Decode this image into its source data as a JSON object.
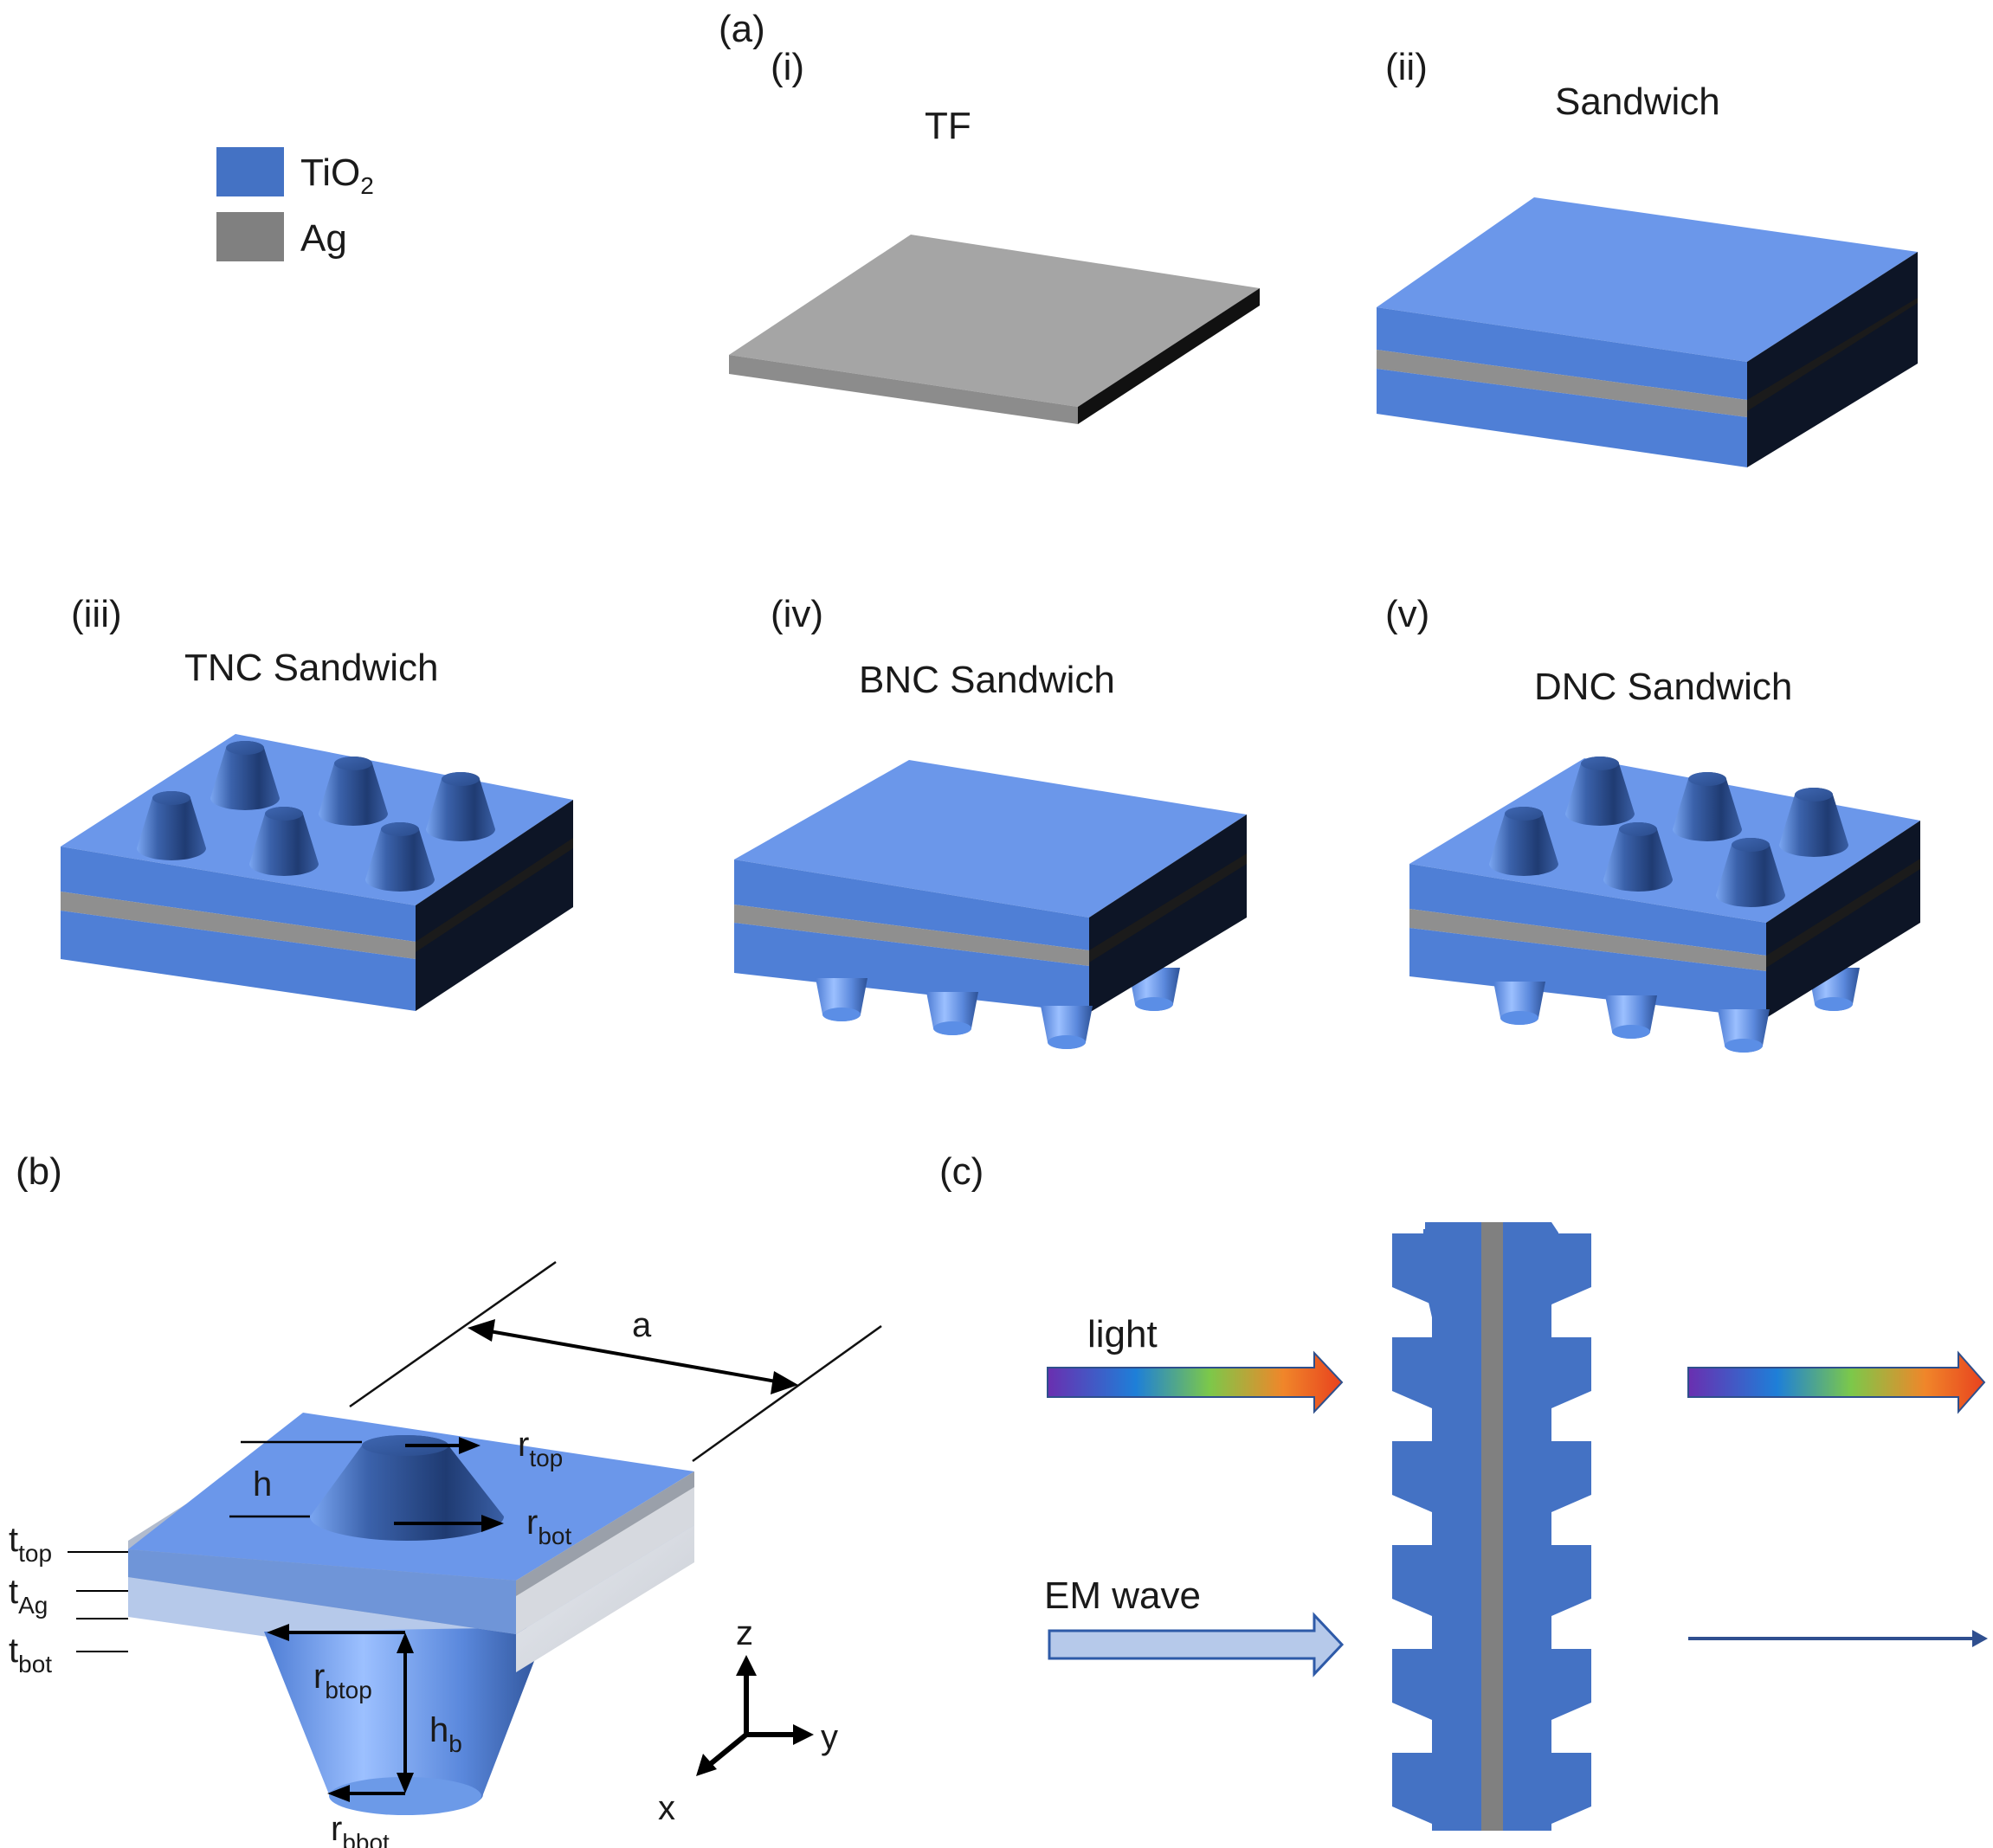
{
  "panels": {
    "a": {
      "label": "(a)",
      "sub": [
        {
          "roman": "(i)",
          "title": "TF"
        },
        {
          "roman": "(ii)",
          "title": "Sandwich"
        },
        {
          "roman": "(iii)",
          "title": "TNC Sandwich"
        },
        {
          "roman": "(iv)",
          "title": "BNC Sandwich"
        },
        {
          "roman": "(v)",
          "title": "DNC Sandwich"
        }
      ]
    },
    "b": {
      "label": "(b)"
    },
    "c": {
      "label": "(c)"
    }
  },
  "legend": {
    "items": [
      {
        "base": "TiO",
        "sub": "2",
        "color": "#4472c4"
      },
      {
        "base": "Ag",
        "sub": "",
        "color": "#808080"
      }
    ]
  },
  "dims": {
    "a": "a",
    "h": {
      "base": "h",
      "sub": ""
    },
    "r_top": {
      "base": "r",
      "sub": "top"
    },
    "r_bot": {
      "base": "r",
      "sub": "bot"
    },
    "t_top": {
      "base": "t",
      "sub": "top"
    },
    "t_ag": {
      "base": "t",
      "sub": "Ag"
    },
    "t_bot": {
      "base": "t",
      "sub": "bot"
    },
    "r_btop": {
      "base": "r",
      "sub": "btop"
    },
    "h_b": {
      "base": "h",
      "sub": "b"
    },
    "r_bbot": {
      "base": "r",
      "sub": "bbot"
    }
  },
  "axes": {
    "z": "z",
    "y": "y",
    "x": "x"
  },
  "waves": {
    "light": "light",
    "em": "EM wave"
  },
  "colors": {
    "tio2_top": "#6b97ea",
    "tio2_front": "#4f7fd6",
    "side_dark": "#0d1526",
    "ag_front": "#8f8f8f",
    "ag_top": "#a3a3a3",
    "cone_dark": "#22417a",
    "cone_light": "#7aa6f2",
    "light_blue": "#b6c9ea",
    "c_blue": "#4472c4",
    "c_gray": "#808080"
  }
}
